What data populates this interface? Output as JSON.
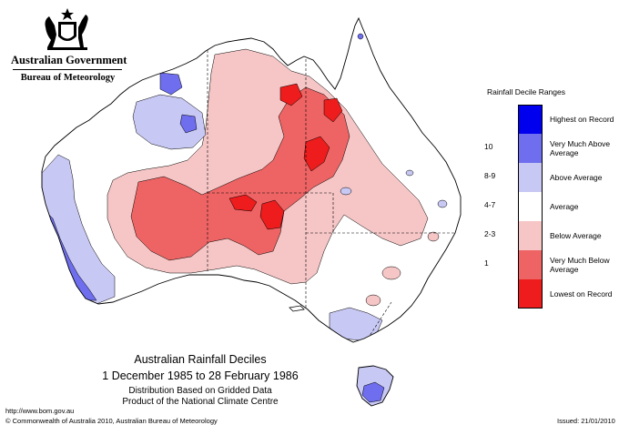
{
  "header": {
    "government": "Australian Government",
    "bureau": "Bureau of Meteorology"
  },
  "map": {
    "title": "Australian Rainfall Deciles",
    "period": "1 December 1985 to 28 February 1986",
    "note1": "Distribution Based on Gridded Data",
    "note2": "Product of the National Climate Centre"
  },
  "footer": {
    "url": "http://www.bom.gov.au",
    "copyright": "© Commonwealth of Australia 2010, Australian Bureau of Meteorology",
    "issued": "Issued: 21/01/2010"
  },
  "legend": {
    "title": "Rainfall Decile Ranges",
    "items": [
      {
        "range": "",
        "label": "Highest on Record",
        "color": "#0000ee"
      },
      {
        "range": "10",
        "label": "Very Much Above Average",
        "color": "#6e6eee"
      },
      {
        "range": "8-9",
        "label": "Above Average",
        "color": "#c8c8f4"
      },
      {
        "range": "4-7",
        "label": "Average",
        "color": "#ffffff"
      },
      {
        "range": "2-3",
        "label": "Below Average",
        "color": "#f6c6c6"
      },
      {
        "range": "1",
        "label": "Very Much Below Average",
        "color": "#ee6464"
      },
      {
        "range": "",
        "label": "Lowest on Record",
        "color": "#ee1c1c"
      }
    ]
  }
}
